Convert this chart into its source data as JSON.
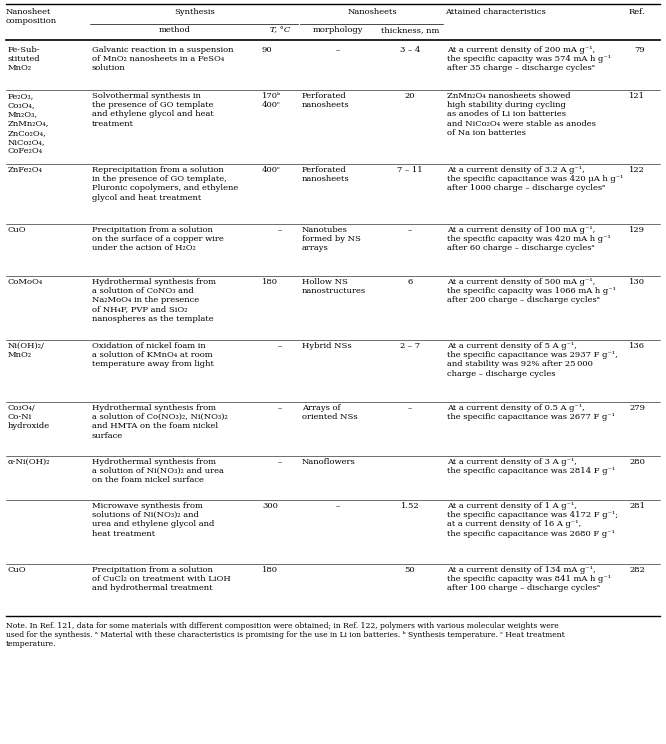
{
  "rows": [
    {
      "composition": "Fe-Sub-\nstituted\nMnO₂",
      "method": "Galvanic reaction in a suspension\nof MnO₂ nanosheets in a FeSO₄\nsolution",
      "temp": "90",
      "morphology": "–",
      "thickness": "3 – 4",
      "characteristics": "At a current density of 200 mA g⁻¹,\nthe specific capacity was 574 mA h g⁻¹\nafter 35 charge – discharge cyclesᵃ",
      "ref": "79"
    },
    {
      "composition": "Fe₂O₃,\nCo₃O₄,\nMn₂O₃,\nZnMn₂O₄,\nZnCo₂O₄,\nNiCo₂O₄,\nCoFe₂O₄",
      "method": "Solvothermal synthesis in\nthe presence of GO template\nand ethylene glycol and heat\ntreatment",
      "temp": "170ᵇ\n400ᶜ",
      "morphology": "Perforated\nnanosheets",
      "thickness": "20",
      "characteristics": "ZnMn₂O₄ nanosheets showed\nhigh stability during cycling\nas anodes of Li ion batteries\nand NiCo₂O₄ were stable as anodes\nof Na ion batteries",
      "ref": "121"
    },
    {
      "composition": "ZnFe₂O₄",
      "method": "Reprecipitation from a solution\nin the presence of GO template,\nPluronic copolymers, and ethylene\nglycol and heat treatment",
      "temp": "400ᶜ",
      "morphology": "Perforated\nnanosheets",
      "thickness": "7 – 11",
      "characteristics": "At a current density of 3.2 A g⁻¹,\nthe specific capacitance was 420 μA h g⁻¹\nafter 1000 charge – discharge cyclesᵃ",
      "ref": "122"
    },
    {
      "composition": "CuO",
      "method": "Precipitation from a solution\non the surface of a copper wire\nunder the action of H₂O₂",
      "temp": "–",
      "morphology": "Nanotubes\nformed by NS\narrays",
      "thickness": "–",
      "characteristics": "At a current density of 100 mA g⁻¹,\nthe specific capacity was 420 mA h g⁻¹\nafter 60 charge – discharge cyclesᵃ",
      "ref": "129"
    },
    {
      "composition": "CoMoO₄",
      "method": "Hydrothermal synthesis from\na solution of CoNO₃ and\nNa₂MoO₄ in the presence\nof NH₄F, PVP and SiO₂\nnanospheres as the template",
      "temp": "180",
      "morphology": "Hollow NS\nnanostructures",
      "thickness": "6",
      "characteristics": "At a current density of 500 mA g⁻¹,\nthe specific capacity was 1066 mA h g⁻¹\nafter 200 charge – discharge cyclesᵃ",
      "ref": "130"
    },
    {
      "composition": "Ni(OH)₂/\nMnO₂",
      "method": "Oxidation of nickel foam in\na solution of KMnO₄ at room\ntemperature away from light",
      "temp": "–",
      "morphology": "Hybrid NSs",
      "thickness": "2 – 7",
      "characteristics": "At a current density of 5 A g⁻¹,\nthe specific capacitance was 2937 F g⁻¹,\nand stability was 92% after 25 000\ncharge – discharge cycles",
      "ref": "136"
    },
    {
      "composition": "Co₃O₄/\nCo-Ni\nhydroxide",
      "method": "Hydrothermal synthesis from\na solution of Co(NO₃)₂, Ni(NO₃)₂\nand HMTA on the foam nickel\nsurface",
      "temp": "–",
      "morphology": "Arrays of\noriented NSs",
      "thickness": "–",
      "characteristics": "At a current density of 0.5 A g⁻¹,\nthe specific capacitance was 2677 F g⁻¹",
      "ref": "279"
    },
    {
      "composition": "α-Ni(OH)₂",
      "method": "Hydrothermal synthesis from\na solution of Ni(NO₃)₂ and urea\non the foam nickel surface",
      "temp": "–",
      "morphology": "Nanoflowers",
      "thickness": "",
      "characteristics": "At a current density of 3 A g⁻¹,\nthe specific capacitance was 2814 F g⁻¹",
      "ref": "280"
    },
    {
      "composition": "",
      "method": "Microwave synthesis from\nsolutions of Ni(NO₃)₂ and\nurea and ethylene glycol and\nheat treatment",
      "temp": "300",
      "morphology": "–",
      "thickness": "1.52",
      "characteristics": "At a current density of 1 A g⁻¹,\nthe specific capacitance was 4172 F g⁻¹;\nat a current density of 16 A g⁻¹,\nthe specific capacitance was 2680 F g⁻¹",
      "ref": "281"
    },
    {
      "composition": "CuO",
      "method": "Precipitation from a solution\nof CuCl₂ on treatment with LiOH\nand hydrothermal treatment",
      "temp": "180",
      "morphology": "",
      "thickness": "50",
      "characteristics": "At a current density of 134 mA g⁻¹,\nthe specific capacity was 841 mA h g⁻¹\nafter 100 charge – discharge cyclesᵃ",
      "ref": "282"
    }
  ],
  "note": "Note. In Ref. 121, data for some materials with different composition were obtained; in Ref. 122, polymers with various molecular weights were\nused for the synthesis. ᵃ Material with these characteristics is promising for the use in Li ion batteries. ᵇ Synthesis temperature. ᶜ Heat treatment\ntemperature."
}
